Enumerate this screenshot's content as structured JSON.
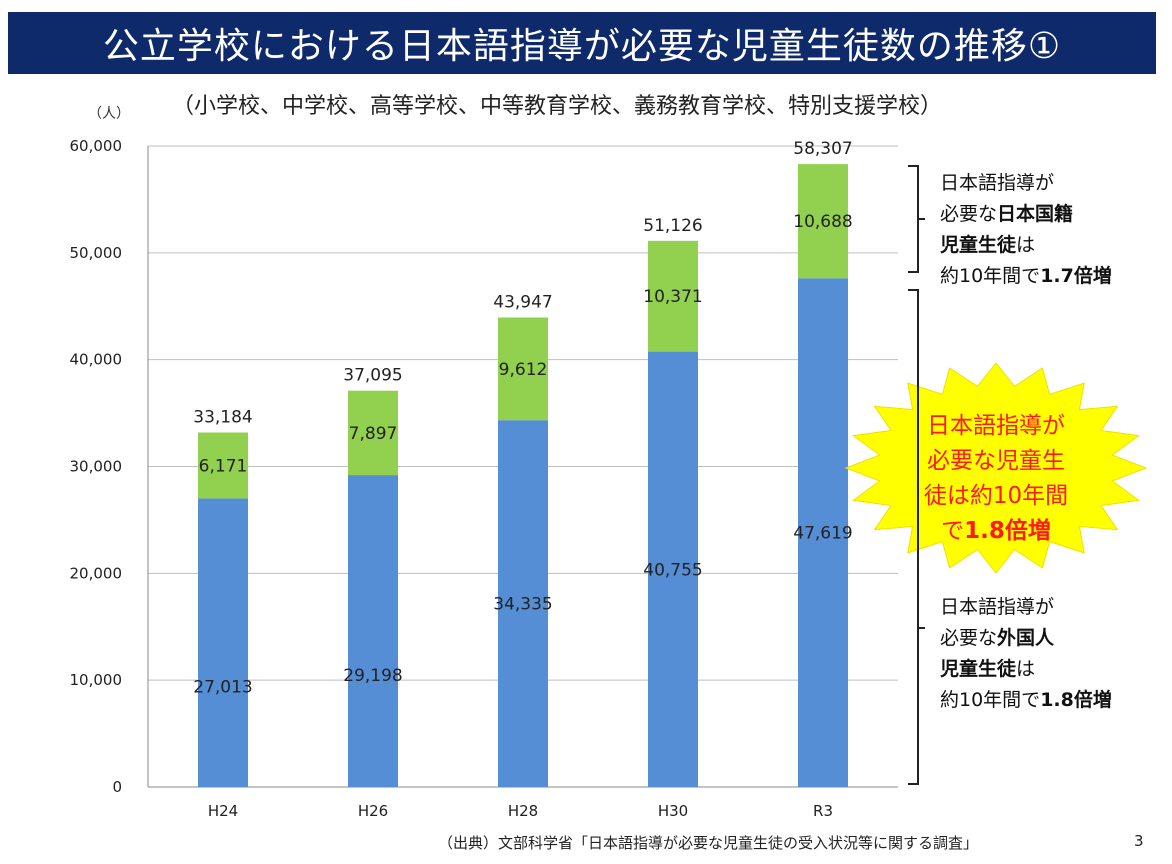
{
  "header": {
    "title": "公立学校における日本語指導が必要な児童生徒数の推移①",
    "subtitle": "（小学校、中学校、高等学校、中等教育学校、義務教育学校、特別支援学校）"
  },
  "chart_data": {
    "type": "bar",
    "stacked": true,
    "unit_label": "（人）",
    "categories": [
      "H24",
      "H26",
      "H28",
      "H30",
      "R3"
    ],
    "series": [
      {
        "name": "外国人児童生徒",
        "color": "#558ed5",
        "values": [
          27013,
          29198,
          34335,
          40755,
          47619
        ],
        "labels": [
          "27,013",
          "29,198",
          "34,335",
          "40,755",
          "47,619"
        ]
      },
      {
        "name": "日本国籍児童生徒",
        "color": "#92d050",
        "values": [
          6171,
          7897,
          9612,
          10371,
          10688
        ],
        "labels": [
          "6,171",
          "7,897",
          "9,612",
          "10,371",
          "10,688"
        ]
      }
    ],
    "totals": [
      "33,184",
      "37,095",
      "43,947",
      "51,126",
      "58,307"
    ],
    "ylim": [
      0,
      60000
    ],
    "yticks": [
      0,
      10000,
      20000,
      30000,
      40000,
      50000,
      60000
    ],
    "ytick_labels": [
      "0",
      "10,000",
      "20,000",
      "30,000",
      "40,000",
      "50,000",
      "60,000"
    ],
    "grid": true
  },
  "notes": {
    "japanese_nationality": {
      "line1": "日本語指導が",
      "line2_prefix": "必要な",
      "line2_bold": "日本国籍",
      "line3_bold": "児童生徒",
      "line3_suffix": "は",
      "line4_prefix": "約10年間で",
      "line4_bold": "1.7倍増"
    },
    "foreign": {
      "line1": "日本語指導が",
      "line2_prefix": "必要な",
      "line2_bold": "外国人",
      "line3_bold": "児童生徒",
      "line3_suffix": "は",
      "line4_prefix": "約10年間で",
      "line4_bold": "1.8倍増"
    },
    "burst": {
      "line1": "日本語指導が",
      "line2": "必要な児童生",
      "line3": "徒は約10年間",
      "line4_prefix": "で",
      "line4_bold": "1.8倍増"
    }
  },
  "colors": {
    "title_bg": "#0f2a6a",
    "burst_fill": "#ffff00",
    "burst_text": "#ff1a1a"
  },
  "footer": {
    "source": "（出典）文部科学省「日本語指導が必要な児童生徒の受入状況等に関する調査」",
    "page_number": "3"
  }
}
